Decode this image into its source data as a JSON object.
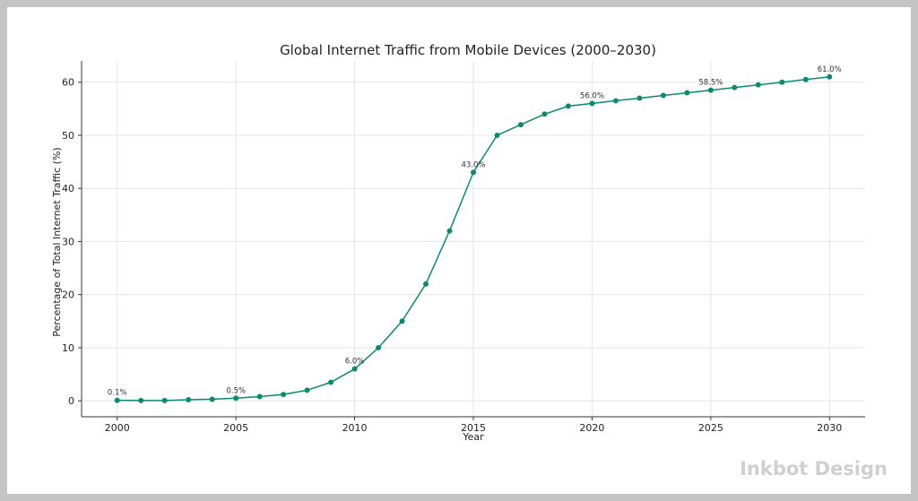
{
  "chart_data": {
    "type": "line",
    "title": "Global Internet Traffic from Mobile Devices (2000–2030)",
    "xlabel": "Year",
    "ylabel": "Percentage of Total Internet Traffic (%)",
    "xlim": [
      1998.5,
      2031.5
    ],
    "ylim": [
      -3,
      64
    ],
    "x_ticks": [
      2000,
      2005,
      2010,
      2015,
      2020,
      2025,
      2030
    ],
    "y_ticks": [
      0,
      10,
      20,
      30,
      40,
      50,
      60
    ],
    "grid": true,
    "series": [
      {
        "color": "#0b8a73",
        "x": [
          2000,
          2001,
          2002,
          2003,
          2004,
          2005,
          2006,
          2007,
          2008,
          2009,
          2010,
          2011,
          2012,
          2013,
          2014,
          2015,
          2016,
          2017,
          2018,
          2019,
          2020,
          2021,
          2022,
          2023,
          2024,
          2025,
          2026,
          2027,
          2028,
          2029,
          2030
        ],
        "y": [
          0.1,
          0.05,
          0.05,
          0.2,
          0.3,
          0.5,
          0.8,
          1.2,
          2.0,
          3.5,
          6.0,
          10.0,
          15.0,
          22.0,
          32.0,
          43.0,
          50.0,
          52.0,
          54.0,
          55.5,
          56.0,
          56.5,
          57.0,
          57.5,
          58.0,
          58.5,
          59.0,
          59.5,
          60.0,
          60.5,
          61.0
        ]
      }
    ],
    "annotations": [
      {
        "x": 2000,
        "y": 0.1,
        "text": "0.1%"
      },
      {
        "x": 2005,
        "y": 0.5,
        "text": "0.5%"
      },
      {
        "x": 2010,
        "y": 6.0,
        "text": "6.0%"
      },
      {
        "x": 2015,
        "y": 43.0,
        "text": "43.0%"
      },
      {
        "x": 2020,
        "y": 56.0,
        "text": "56.0%"
      },
      {
        "x": 2025,
        "y": 58.5,
        "text": "58.5%"
      },
      {
        "x": 2030,
        "y": 61.0,
        "text": "61.0%"
      }
    ]
  },
  "watermark": "Inkbot Design"
}
